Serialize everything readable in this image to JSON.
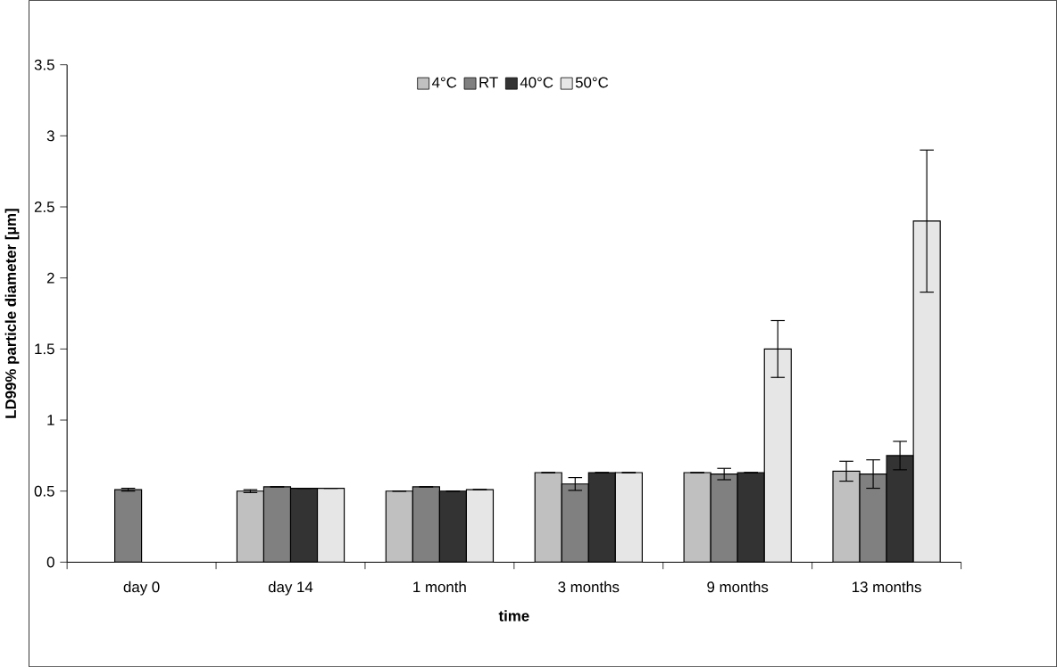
{
  "chart_data": {
    "type": "bar",
    "xlabel": "time",
    "ylabel": "LD99% particle diameter [µm]",
    "categories": [
      "day 0",
      "day 14",
      "1 month",
      "3 months",
      "9 months",
      "13 months"
    ],
    "series": [
      {
        "name": "4°C",
        "color": "#c0c0c0",
        "values": [
          null,
          0.5,
          0.5,
          0.63,
          0.63,
          0.64
        ],
        "errors": [
          null,
          0.01,
          null,
          null,
          null,
          0.07
        ]
      },
      {
        "name": "RT",
        "color": "#808080",
        "values": [
          0.51,
          0.53,
          0.53,
          0.55,
          0.62,
          0.62
        ],
        "errors": [
          0.01,
          null,
          null,
          0.045,
          0.04,
          0.1
        ]
      },
      {
        "name": "40°C",
        "color": "#333333",
        "values": [
          null,
          0.52,
          0.5,
          0.63,
          0.63,
          0.75
        ],
        "errors": [
          null,
          null,
          null,
          null,
          null,
          0.1
        ]
      },
      {
        "name": "50°C",
        "color": "#e6e6e6",
        "values": [
          null,
          0.52,
          0.51,
          0.63,
          1.5,
          2.4
        ],
        "errors": [
          null,
          null,
          null,
          null,
          0.2,
          0.5
        ]
      }
    ],
    "ylim": [
      0,
      3.5
    ],
    "yticks": [
      0,
      0.5,
      1,
      1.5,
      2,
      2.5,
      3,
      3.5
    ],
    "grid": false,
    "legend": "top"
  }
}
